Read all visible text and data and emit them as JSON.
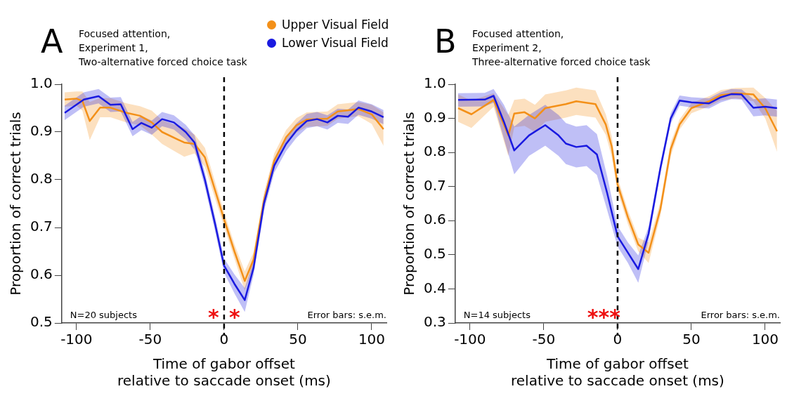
{
  "chart_data": [
    {
      "type": "line",
      "title": "A",
      "subtitle": "Focused attention,\nExperiment 1,\nTwo-alternative forced choice task",
      "xlabel": "Time of gabor offset\nrelative to saccade onset (ms)",
      "ylabel": "Proportion of correct trials",
      "legend": "top right",
      "marker": "none",
      "grid": false,
      "xlim": [
        -110,
        110
      ],
      "xticks": [
        -100,
        -50,
        0,
        50,
        100
      ],
      "ylim": [
        0.5,
        1.0
      ],
      "yticks": [
        {
          "value": 0.5,
          "label": "0.5"
        },
        {
          "value": 0.6,
          "label": "0.6"
        },
        {
          "value": 0.7,
          "label": "0.7"
        },
        {
          "value": 0.8,
          "label": "0.8"
        },
        {
          "value": 0.9,
          "label": "0.9"
        },
        {
          "value": 1.0,
          "label": "1.0"
        }
      ],
      "ref_lines": [
        {
          "axis": "x",
          "value": 0,
          "color": "#000000",
          "line_style": "dashed"
        }
      ],
      "annotations": [
        "N=20 subjects",
        "Error bars: s.e.m.",
        "*",
        "*"
      ],
      "series": [
        {
          "name": "Upper Visual Field",
          "color": "#f39019",
          "x": [
            -108,
            -100,
            -96,
            -91,
            -84,
            -77,
            -66,
            -57,
            -49,
            -42,
            -27,
            -20,
            -13,
            0,
            7,
            14,
            20,
            27,
            34,
            42,
            49,
            56,
            70,
            77,
            91,
            100,
            108
          ],
          "values": [
            0.968,
            0.97,
            0.965,
            0.923,
            0.951,
            0.951,
            0.94,
            0.934,
            0.92,
            0.9,
            0.878,
            0.875,
            0.847,
            0.717,
            0.65,
            0.588,
            0.633,
            0.757,
            0.84,
            0.889,
            0.914,
            0.926,
            0.928,
            0.943,
            0.948,
            0.937,
            0.906
          ],
          "lower": [
            0.953,
            0.955,
            0.945,
            0.883,
            0.931,
            0.931,
            0.92,
            0.914,
            0.895,
            0.875,
            0.848,
            0.855,
            0.827,
            0.702,
            0.635,
            0.568,
            0.618,
            0.742,
            0.825,
            0.874,
            0.899,
            0.911,
            0.913,
            0.928,
            0.933,
            0.917,
            0.871
          ],
          "upper": [
            0.983,
            0.985,
            0.985,
            0.963,
            0.971,
            0.971,
            0.96,
            0.954,
            0.945,
            0.925,
            0.908,
            0.895,
            0.867,
            0.732,
            0.665,
            0.608,
            0.648,
            0.772,
            0.855,
            0.904,
            0.929,
            0.941,
            0.943,
            0.958,
            0.963,
            0.957,
            0.941
          ]
        },
        {
          "name": "Lower Visual Field",
          "color": "#1a1ae0",
          "x": [
            -108,
            -95,
            -85,
            -77,
            -70,
            -62,
            -56,
            -49,
            -42,
            -34,
            -26,
            -20,
            -13,
            -6,
            0,
            7,
            14,
            20,
            27,
            34,
            42,
            49,
            56,
            63,
            70,
            77,
            84,
            91,
            100,
            108
          ],
          "values": [
            0.94,
            0.968,
            0.975,
            0.957,
            0.958,
            0.906,
            0.919,
            0.909,
            0.927,
            0.92,
            0.9,
            0.878,
            0.8,
            0.706,
            0.62,
            0.582,
            0.548,
            0.616,
            0.75,
            0.83,
            0.875,
            0.903,
            0.923,
            0.927,
            0.92,
            0.934,
            0.932,
            0.951,
            0.943,
            0.931
          ],
          "lower": [
            0.925,
            0.953,
            0.96,
            0.942,
            0.943,
            0.891,
            0.904,
            0.894,
            0.912,
            0.905,
            0.885,
            0.863,
            0.785,
            0.691,
            0.605,
            0.562,
            0.523,
            0.601,
            0.735,
            0.815,
            0.86,
            0.888,
            0.908,
            0.912,
            0.905,
            0.919,
            0.917,
            0.936,
            0.928,
            0.916
          ],
          "upper": [
            0.955,
            0.983,
            0.99,
            0.972,
            0.973,
            0.921,
            0.934,
            0.924,
            0.942,
            0.935,
            0.915,
            0.893,
            0.815,
            0.721,
            0.635,
            0.602,
            0.573,
            0.631,
            0.765,
            0.845,
            0.89,
            0.918,
            0.938,
            0.942,
            0.935,
            0.949,
            0.947,
            0.966,
            0.958,
            0.946
          ]
        }
      ]
    },
    {
      "type": "line",
      "title": "B",
      "subtitle": "Focused attention,\nExperiment 2,\nThree-alternative forced choice task",
      "xlabel": "Time of gabor offset\nrelative to saccade onset (ms)",
      "ylabel": "Proportion of correct trials",
      "marker": "none",
      "grid": false,
      "xlim": [
        -110,
        110
      ],
      "xticks": [
        -100,
        -50,
        0,
        50,
        100
      ],
      "ylim": [
        0.3,
        1.0
      ],
      "yticks": [
        {
          "value": 0.3,
          "label": "0.3"
        },
        {
          "value": 0.4,
          "label": "0.4"
        },
        {
          "value": 0.5,
          "label": "0.5"
        },
        {
          "value": 0.6,
          "label": "0.6"
        },
        {
          "value": 0.7,
          "label": "0.7"
        },
        {
          "value": 0.8,
          "label": "0.8"
        },
        {
          "value": 0.9,
          "label": "0.9"
        },
        {
          "value": 1.0,
          "label": "1.0"
        }
      ],
      "ref_lines": [
        {
          "axis": "x",
          "value": 0,
          "color": "#000000",
          "line_style": "dashed"
        }
      ],
      "annotations": [
        "N=14 subjects",
        "Error bars: s.e.m.",
        "***"
      ],
      "series": [
        {
          "color": "#f39019",
          "x": [
            -108,
            -99,
            -84,
            -74,
            -70,
            -63,
            -56,
            -49,
            -35,
            -28,
            -15,
            -8,
            -4,
            0,
            7,
            14,
            21,
            29,
            36,
            42,
            50,
            62,
            70,
            80,
            92,
            100,
            108
          ],
          "values": [
            0.93,
            0.912,
            0.954,
            0.85,
            0.914,
            0.918,
            0.9,
            0.93,
            0.942,
            0.95,
            0.942,
            0.882,
            0.818,
            0.706,
            0.61,
            0.53,
            0.506,
            0.634,
            0.81,
            0.882,
            0.93,
            0.95,
            0.968,
            0.974,
            0.97,
            0.93,
            0.862
          ],
          "lower": [
            0.89,
            0.872,
            0.934,
            0.79,
            0.874,
            0.878,
            0.86,
            0.89,
            0.902,
            0.91,
            0.902,
            0.852,
            0.788,
            0.686,
            0.59,
            0.51,
            0.476,
            0.614,
            0.79,
            0.867,
            0.915,
            0.935,
            0.953,
            0.959,
            0.95,
            0.9,
            0.802
          ],
          "upper": [
            0.97,
            0.952,
            0.974,
            0.91,
            0.954,
            0.958,
            0.94,
            0.97,
            0.982,
            0.99,
            0.982,
            0.912,
            0.848,
            0.726,
            0.63,
            0.55,
            0.536,
            0.654,
            0.83,
            0.897,
            0.945,
            0.965,
            0.983,
            0.989,
            0.99,
            0.96,
            0.922
          ]
        },
        {
          "color": "#1a1ae0",
          "x": [
            -108,
            -90,
            -84,
            -77,
            -70,
            -60,
            -49,
            -40,
            -35,
            -28,
            -21,
            -14,
            -7,
            0,
            7,
            14,
            21,
            29,
            36,
            42,
            50,
            62,
            70,
            77,
            84,
            92,
            100,
            108
          ],
          "values": [
            0.954,
            0.955,
            0.966,
            0.89,
            0.806,
            0.85,
            0.88,
            0.85,
            0.826,
            0.816,
            0.82,
            0.794,
            0.68,
            0.554,
            0.506,
            0.458,
            0.562,
            0.754,
            0.9,
            0.952,
            0.947,
            0.944,
            0.962,
            0.971,
            0.97,
            0.931,
            0.934,
            0.93
          ],
          "lower": [
            0.934,
            0.935,
            0.946,
            0.84,
            0.736,
            0.79,
            0.82,
            0.79,
            0.766,
            0.756,
            0.76,
            0.734,
            0.63,
            0.524,
            0.476,
            0.418,
            0.542,
            0.739,
            0.885,
            0.937,
            0.932,
            0.929,
            0.947,
            0.956,
            0.955,
            0.906,
            0.909,
            0.905
          ],
          "upper": [
            0.974,
            0.975,
            0.986,
            0.94,
            0.876,
            0.91,
            0.94,
            0.91,
            0.886,
            0.876,
            0.88,
            0.854,
            0.73,
            0.584,
            0.536,
            0.498,
            0.582,
            0.769,
            0.915,
            0.967,
            0.962,
            0.959,
            0.977,
            0.986,
            0.985,
            0.956,
            0.959,
            0.955
          ]
        }
      ]
    }
  ]
}
